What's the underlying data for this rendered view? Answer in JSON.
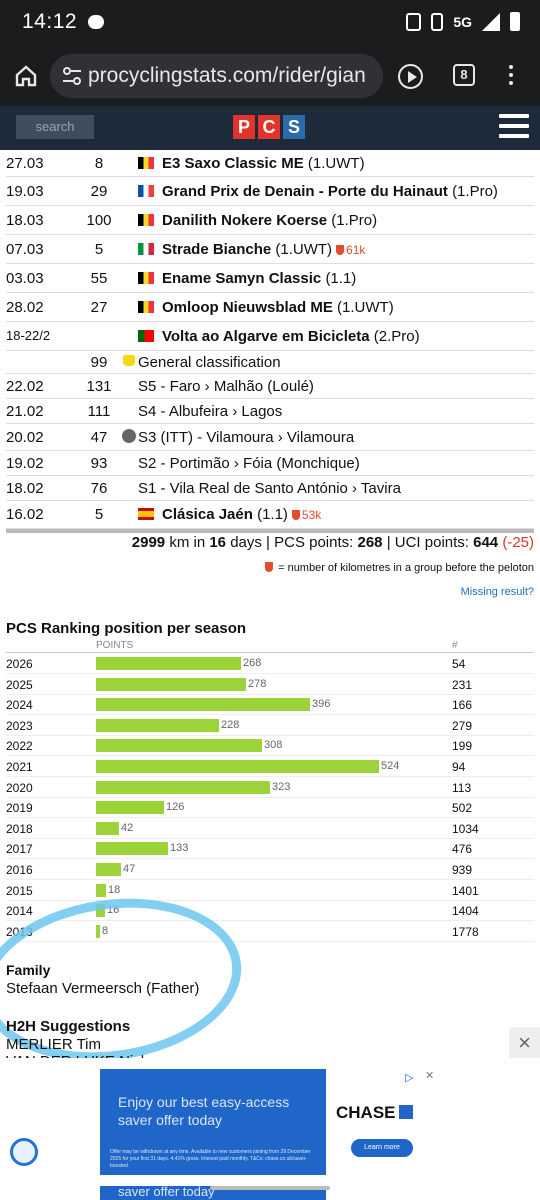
{
  "status_bar": {
    "time": "14:12",
    "network": "5G"
  },
  "browser": {
    "url": "procyclingstats.com/rider/gian",
    "tab_count": "8"
  },
  "site": {
    "search_placeholder": "search",
    "logo": [
      "P",
      "C",
      "S"
    ]
  },
  "results": [
    {
      "date": "27.03",
      "rank": "8",
      "flag": "be",
      "name": "E3 Saxo Classic ME",
      "cat": "(1.UWT)",
      "km": ""
    },
    {
      "date": "19.03",
      "rank": "29",
      "flag": "fr",
      "name": "Grand Prix de Denain - Porte du Hainaut",
      "cat": "(1.Pro)",
      "km": ""
    },
    {
      "date": "18.03",
      "rank": "100",
      "flag": "be",
      "name": "Danilith Nokere Koerse",
      "cat": "(1.Pro)",
      "km": ""
    },
    {
      "date": "07.03",
      "rank": "5",
      "flag": "it",
      "name": "Strade Bianche",
      "cat": "(1.UWT)",
      "km": "61k"
    },
    {
      "date": "03.03",
      "rank": "55",
      "flag": "be",
      "name": "Ename Samyn Classic",
      "cat": "(1.1)",
      "km": ""
    },
    {
      "date": "28.02",
      "rank": "27",
      "flag": "be",
      "name": "Omloop Nieuwsblad ME",
      "cat": "(1.UWT)",
      "km": ""
    },
    {
      "date": "18-22/2",
      "rank": "",
      "flag": "pt",
      "name": "Volta ao Algarve em Bicicleta",
      "cat": "(2.Pro)",
      "km": ""
    },
    {
      "date": "",
      "rank": "99",
      "flag": "",
      "name": "General classification",
      "cat": "",
      "km": ""
    },
    {
      "date": "22.02",
      "rank": "131",
      "flag": "",
      "name": "S5 - Faro › Malhão (Loulé)",
      "cat": "",
      "km": ""
    },
    {
      "date": "21.02",
      "rank": "111",
      "flag": "",
      "name": "S4 - Albufeira › Lagos",
      "cat": "",
      "km": ""
    },
    {
      "date": "20.02",
      "rank": "47",
      "flag": "",
      "name": "S3 (ITT) - Vilamoura › Vilamoura",
      "cat": "",
      "km": ""
    },
    {
      "date": "19.02",
      "rank": "93",
      "flag": "",
      "name": "S2 - Portimão › Fóia (Monchique)",
      "cat": "",
      "km": ""
    },
    {
      "date": "18.02",
      "rank": "76",
      "flag": "",
      "name": "S1 - Vila Real de Santo António › Tavira",
      "cat": "",
      "km": ""
    },
    {
      "date": "16.02",
      "rank": "5",
      "flag": "es",
      "name": "Clásica Jaén",
      "cat": "(1.1)",
      "km": "53k"
    }
  ],
  "summary": {
    "km": "2999",
    "km_suffix": " km in ",
    "days": "16",
    "days_suffix": " days | PCS points: ",
    "pcs": "268",
    "uci_prefix": " | UCI points: ",
    "uci": "644",
    "uci_delta": "(-25)"
  },
  "legend_text": "= number of kilometres in a group before the peloton",
  "missing_link": "Missing result?",
  "ranking": {
    "title": "PCS Ranking position per season",
    "points_header": "POINTS",
    "rank_header": "#",
    "rows": [
      {
        "year": "2026",
        "points": 268,
        "rank": "54"
      },
      {
        "year": "2025",
        "points": 278,
        "rank": "231"
      },
      {
        "year": "2024",
        "points": 396,
        "rank": "166"
      },
      {
        "year": "2023",
        "points": 228,
        "rank": "279"
      },
      {
        "year": "2022",
        "points": 308,
        "rank": "199"
      },
      {
        "year": "2021",
        "points": 524,
        "rank": "94"
      },
      {
        "year": "2020",
        "points": 323,
        "rank": "113"
      },
      {
        "year": "2019",
        "points": 126,
        "rank": "502"
      },
      {
        "year": "2018",
        "points": 42,
        "rank": "1034"
      },
      {
        "year": "2017",
        "points": 133,
        "rank": "476"
      },
      {
        "year": "2016",
        "points": 47,
        "rank": "939"
      },
      {
        "year": "2015",
        "points": 18,
        "rank": "1401"
      },
      {
        "year": "2014",
        "points": 16,
        "rank": "1404"
      },
      {
        "year": "2013",
        "points": 8,
        "rank": "1778"
      }
    ]
  },
  "family": {
    "title": "Family",
    "value": "Stefaan Vermeersch (Father)"
  },
  "h2h": {
    "title": "H2H Suggestions",
    "items": [
      "MERLIER Tim",
      "VAN DER LUKE Nick"
    ]
  },
  "ad": {
    "headline": "Enjoy our best easy-access saver offer today",
    "small": "Offer may be withdrawn at any time. Available to new customers joining from 29 December 2025 for your first 31 days. 4.41% gross. Interest paid monthly. T&Cs: chase.co.uk/saver-boosted",
    "brand": "CHASE",
    "cta": "Learn more",
    "peek": "saver offer today"
  },
  "colors": {
    "pcs_navy": "#1d2a3a",
    "bar_green": "#9cd33a",
    "accent_red": "#e24b2c",
    "link_blue": "#1e6fc4",
    "chase_blue": "#1f66c8"
  }
}
